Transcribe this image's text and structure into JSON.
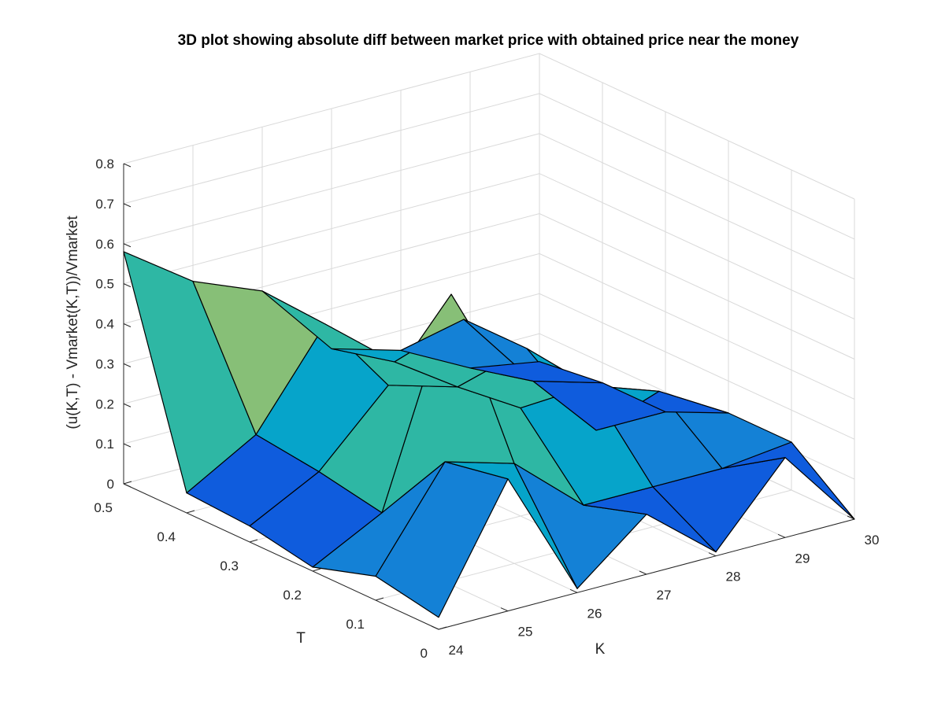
{
  "chart_data": {
    "type": "surface3d",
    "title": "3D plot showing absolute diff between market price with obtained price near the money",
    "xlabel": "K",
    "ylabel": "T",
    "zlabel": "(u(K,T) - Vmarket(K,T))/Vmarket",
    "xlim": [
      24,
      30
    ],
    "ylim": [
      0,
      0.5
    ],
    "zlim": [
      0,
      0.8
    ],
    "x_ticks": [
      "24",
      "25",
      "26",
      "27",
      "28",
      "29",
      "30"
    ],
    "y_ticks": [
      "0",
      "0.1",
      "0.2",
      "0.3",
      "0.4",
      "0.5"
    ],
    "z_ticks": [
      "0",
      "0.1",
      "0.2",
      "0.3",
      "0.4",
      "0.5",
      "0.6",
      "0.7",
      "0.8"
    ],
    "grid": true,
    "colormap": [
      "#352a87",
      "#0f5cdd",
      "#1481d6",
      "#06a4ca",
      "#2eb7a4",
      "#87bf77",
      "#d1bb59",
      "#fec832",
      "#f9fb0e"
    ],
    "k": [
      24,
      25,
      26,
      27,
      28,
      29,
      30
    ],
    "t": [
      0,
      0.1,
      0.2,
      0.3,
      0.4,
      0.5
    ],
    "z": [
      [
        0.03,
        0.33,
        0.01,
        0.15,
        0.01,
        0.2,
        0.0
      ],
      [
        0.06,
        0.3,
        0.25,
        0.1,
        0.1,
        0.1,
        0.12
      ],
      [
        0.01,
        0.1,
        0.6,
        0.27,
        0.28,
        0.22,
        0.12
      ],
      [
        0.04,
        0.13,
        0.3,
        0.25,
        0.3,
        0.05,
        0.05
      ],
      [
        0.05,
        0.15,
        0.38,
        0.24,
        0.3,
        0.1,
        0.05
      ],
      [
        0.58,
        0.46,
        0.39,
        0.2,
        0.15,
        0.06,
        0.03
      ]
    ]
  }
}
